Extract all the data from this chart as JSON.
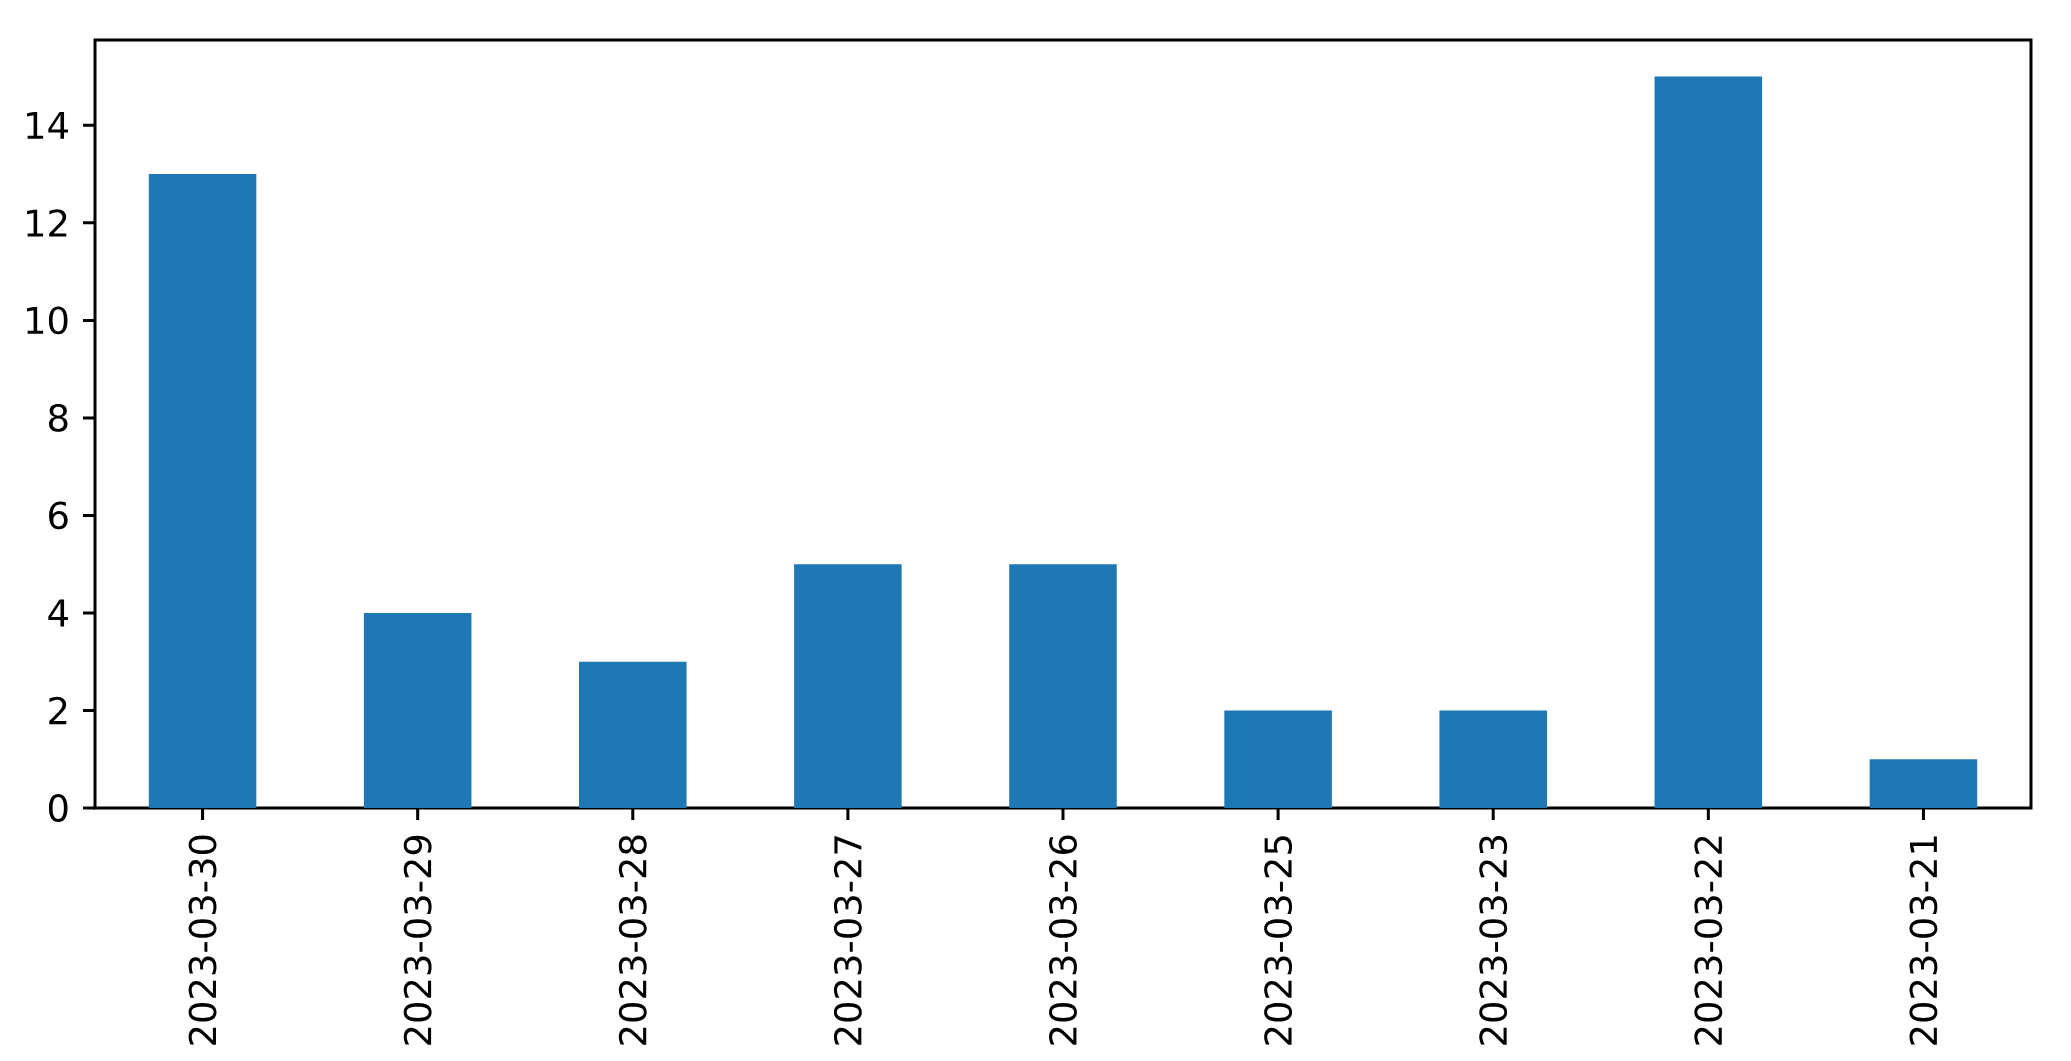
{
  "chart_data": {
    "type": "bar",
    "categories": [
      "2023-03-30",
      "2023-03-29",
      "2023-03-28",
      "2023-03-27",
      "2023-03-26",
      "2023-03-25",
      "2023-03-23",
      "2023-03-22",
      "2023-03-21"
    ],
    "values": [
      13,
      4,
      3,
      5,
      5,
      2,
      2,
      15,
      1
    ],
    "color": "#1f77b4",
    "ylim": [
      0,
      15.75
    ],
    "yticks": [
      0,
      2,
      4,
      6,
      8,
      10,
      12,
      14
    ]
  }
}
